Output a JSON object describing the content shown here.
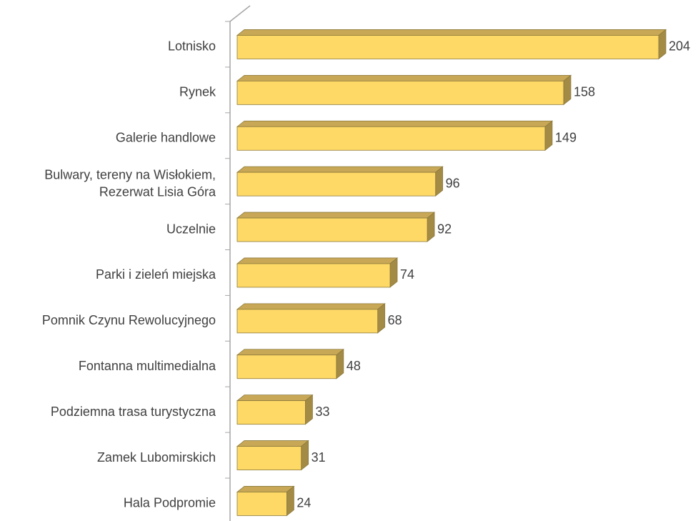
{
  "chart_data": {
    "type": "bar",
    "orientation": "horizontal",
    "three_d": true,
    "categories": [
      "Lotnisko",
      "Rynek",
      "Galerie handlowe",
      "Bulwary, tereny na Wisłokiem,\nRezerwat Lisia Góra",
      "Uczelnie",
      "Parki i zieleń miejska",
      "Pomnik Czynu Rewolucyjnego",
      "Fontanna multimedialna",
      "Podziemna trasa turystyczna",
      "Zamek Lubomirskich",
      "Hala Podpromie"
    ],
    "values": [
      204,
      158,
      149,
      96,
      92,
      74,
      68,
      48,
      33,
      31,
      24
    ],
    "color": "#ffd966"
  }
}
